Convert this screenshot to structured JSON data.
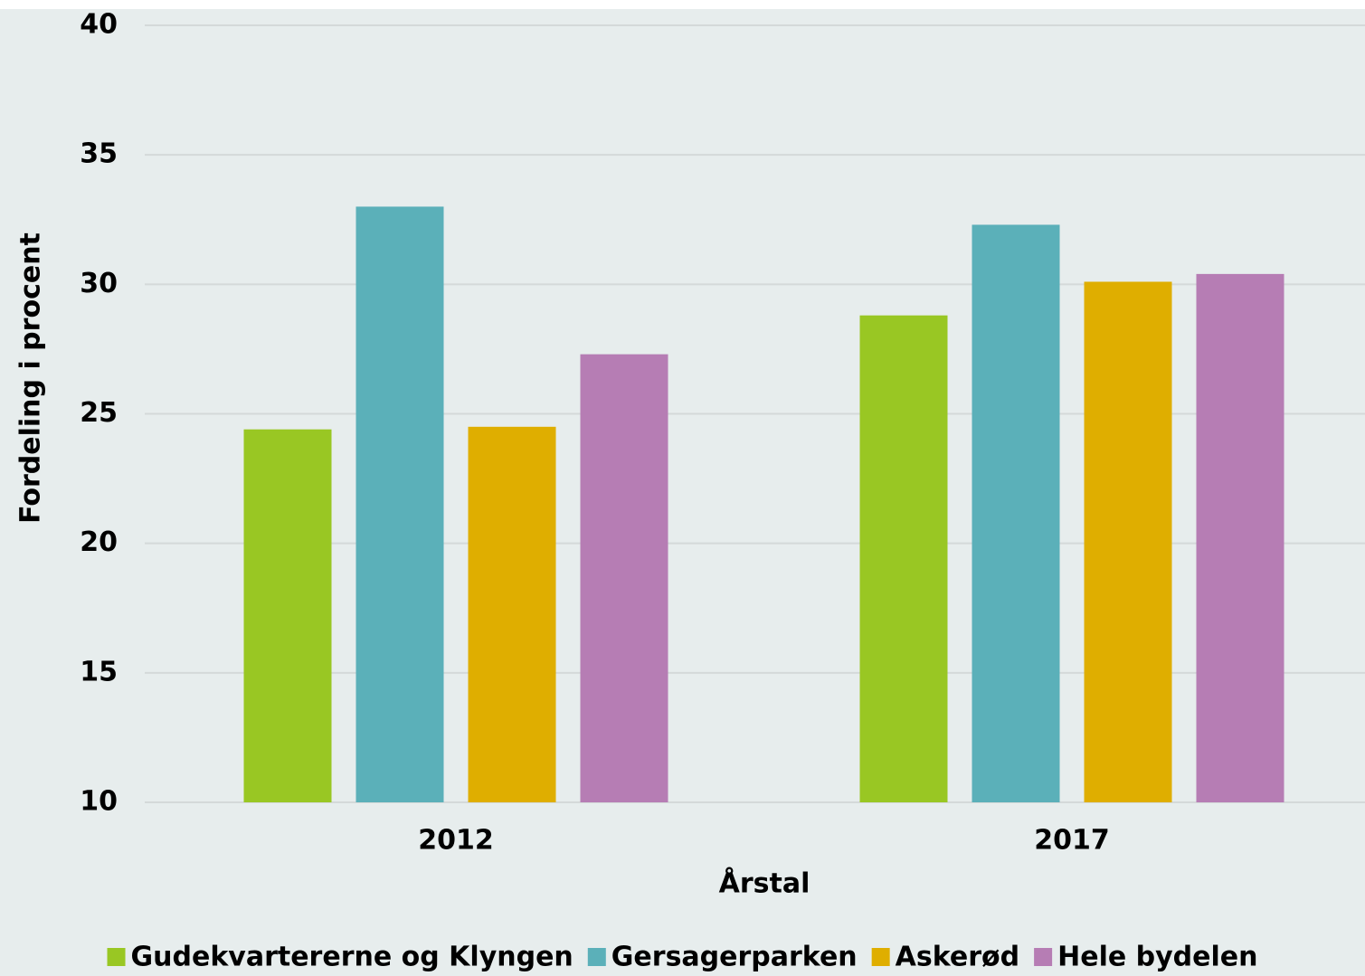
{
  "chart_data": {
    "type": "bar",
    "x_label": "Årstal",
    "y_label": "Fordeling i procent",
    "categories": [
      "2012",
      "2017"
    ],
    "series": [
      {
        "name": "Gudekvartererne og Klyngen",
        "color": "#99c723",
        "values": [
          24.4,
          28.8
        ]
      },
      {
        "name": "Gersagerparken",
        "color": "#5bb0b9",
        "values": [
          33.0,
          32.3
        ]
      },
      {
        "name": "Askerød",
        "color": "#dfae00",
        "values": [
          24.5,
          30.1
        ]
      },
      {
        "name": "Hele bydelen",
        "color": "#b67db4",
        "values": [
          27.3,
          30.4
        ]
      }
    ],
    "ylim": [
      10,
      40
    ],
    "yticks": [
      10,
      15,
      20,
      25,
      30,
      35,
      40
    ],
    "grid": true,
    "legend": "bottom"
  }
}
